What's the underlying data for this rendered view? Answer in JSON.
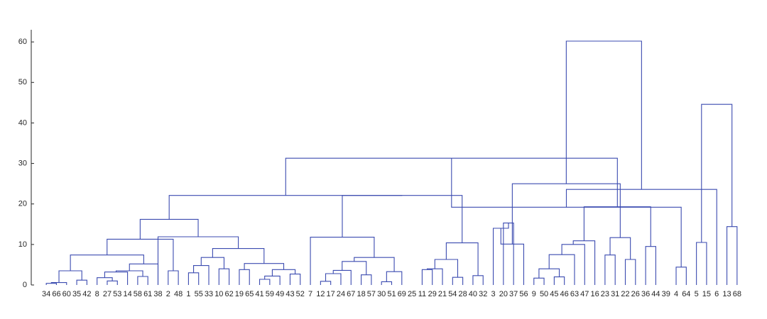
{
  "chart_data": {
    "type": "dendrogram",
    "title": "",
    "xlabel": "",
    "ylabel": "",
    "ylim": [
      0,
      63
    ],
    "y_ticks": [
      0,
      10,
      20,
      30,
      40,
      50,
      60
    ],
    "grid": false,
    "legend": "none",
    "line_color": "#3b4bb0",
    "leaf_order": [
      "34",
      "66",
      "60",
      "35",
      "42",
      "8",
      "27",
      "53",
      "14",
      "58",
      "61",
      "38",
      "2",
      "48",
      "1",
      "55",
      "33",
      "10",
      "62",
      "19",
      "65",
      "41",
      "59",
      "49",
      "43",
      "52",
      "7",
      "12",
      "17",
      "24",
      "67",
      "18",
      "57",
      "30",
      "51",
      "69",
      "25",
      "11",
      "29",
      "21",
      "54",
      "28",
      "40",
      "32",
      "3",
      "20",
      "37",
      "56",
      "9",
      "50",
      "45",
      "46",
      "63",
      "47",
      "16",
      "23",
      "31",
      "22",
      "26",
      "36",
      "44",
      "39",
      "4",
      "64",
      "5",
      "15",
      "6",
      "13",
      "68"
    ],
    "merges": [
      {
        "left": "34",
        "right": "66",
        "height": 0.4
      },
      {
        "left": "35",
        "right": "42",
        "height": 1.2
      },
      {
        "left": "c1",
        "right": "60",
        "height": 0.6
      },
      {
        "left": "c3",
        "right": "c2",
        "height": 3.5
      },
      {
        "left": "27",
        "right": "53",
        "height": 1.0
      },
      {
        "left": "8",
        "right": "c5",
        "height": 1.8
      },
      {
        "left": "c6",
        "right": "14",
        "height": 3.2
      },
      {
        "left": "58",
        "right": "61",
        "height": 2.1
      },
      {
        "left": "c7",
        "right": "c8",
        "height": 3.5
      },
      {
        "left": "c9",
        "right": "38",
        "height": 5.2
      },
      {
        "left": "c4",
        "right": "c10",
        "height": 7.4
      },
      {
        "left": "2",
        "right": "48",
        "height": 3.5
      },
      {
        "left": "c11",
        "right": "c12",
        "height": 11.3
      },
      {
        "left": "1",
        "right": "55",
        "height": 3.0
      },
      {
        "left": "c14",
        "right": "33",
        "height": 4.8
      },
      {
        "left": "10",
        "right": "62",
        "height": 4.0
      },
      {
        "left": "c15",
        "right": "c16",
        "height": 6.8
      },
      {
        "left": "41",
        "right": "59",
        "height": 1.4
      },
      {
        "left": "c18",
        "right": "49",
        "height": 2.2
      },
      {
        "left": "43",
        "right": "52",
        "height": 2.7
      },
      {
        "left": "c19",
        "right": "c20",
        "height": 3.8
      },
      {
        "left": "19",
        "right": "65",
        "height": 3.8
      },
      {
        "left": "c22",
        "right": "c21",
        "height": 5.3
      },
      {
        "left": "c17",
        "right": "c23",
        "height": 9.0
      },
      {
        "left": "c24",
        "right": "38b",
        "height": 11.9
      },
      {
        "left": "c13",
        "right": "c25",
        "height": 16.2
      },
      {
        "left": "12",
        "right": "17",
        "height": 0.9
      },
      {
        "left": "c27",
        "right": "24",
        "height": 2.8
      },
      {
        "left": "c28",
        "right": "67",
        "height": 3.6
      },
      {
        "left": "18",
        "right": "57",
        "height": 2.5
      },
      {
        "left": "c29",
        "right": "c30",
        "height": 5.8
      },
      {
        "left": "30",
        "right": "51",
        "height": 0.8
      },
      {
        "left": "c32",
        "right": "69",
        "height": 3.3
      },
      {
        "left": "c31",
        "right": "c33",
        "height": 6.8
      },
      {
        "left": "7",
        "right": "c34",
        "height": 11.8
      },
      {
        "left": "11",
        "right": "29",
        "height": 3.8
      },
      {
        "left": "c36",
        "right": "21",
        "height": 4.0
      },
      {
        "left": "54",
        "right": "28",
        "height": 1.9
      },
      {
        "left": "c37",
        "right": "c38",
        "height": 6.3
      },
      {
        "left": "40",
        "right": "32",
        "height": 2.3
      },
      {
        "left": "c39",
        "right": "c40",
        "height": 10.4
      },
      {
        "left": "c35",
        "right": "c41",
        "height": 22.1
      },
      {
        "left": "c26",
        "right": "c42",
        "height": 22.1
      },
      {
        "left": "20",
        "right": "37",
        "height": 15.3
      },
      {
        "left": "3",
        "right": "c44",
        "height": 14.0
      },
      {
        "left": "56b",
        "right": "c45",
        "height": 10.1
      },
      {
        "left": "9",
        "right": "50",
        "height": 1.7
      },
      {
        "left": "45",
        "right": "46",
        "height": 2.0
      },
      {
        "left": "c47",
        "right": "c48",
        "height": 4.0
      },
      {
        "left": "c49",
        "right": "63",
        "height": 7.5
      },
      {
        "left": "c50",
        "right": "47",
        "height": 10.0
      },
      {
        "left": "c51",
        "right": "16",
        "height": 10.9
      },
      {
        "left": "23",
        "right": "31",
        "height": 7.4
      },
      {
        "left": "22",
        "right": "26",
        "height": 6.3
      },
      {
        "left": "36",
        "right": "44",
        "height": 9.5
      },
      {
        "left": "c53",
        "right": "c54",
        "height": 11.7
      },
      {
        "left": "c52",
        "right": "c55",
        "height": 19.3
      },
      {
        "left": "c46",
        "right": "c56",
        "height": 25.0
      },
      {
        "left": "c43",
        "right": "c57",
        "height": 31.3
      },
      {
        "left": "4",
        "right": "64",
        "height": 4.4
      },
      {
        "left": "5",
        "right": "15",
        "height": 10.5
      },
      {
        "left": "c59",
        "right": "c60",
        "height": 19.2
      },
      {
        "left": "13",
        "right": "68",
        "height": 14.4
      },
      {
        "left": "6",
        "right": "c62",
        "height": 23.6
      },
      {
        "left": "c61",
        "right": "c63",
        "height": 44.6
      },
      {
        "left": "c58",
        "right": "c64",
        "height": 60.2
      }
    ]
  }
}
